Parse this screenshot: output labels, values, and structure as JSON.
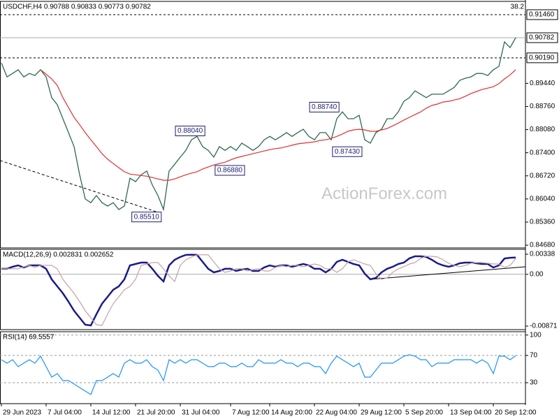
{
  "chart_data": [
    {
      "type": "line",
      "title": "USDCHF,H4 0.90788 0.90833 0.90773 0.90782",
      "watermark": "ActionForex.com",
      "fib_level": 38.2,
      "x": [
        0,
        1,
        2,
        3,
        4,
        5,
        6,
        7,
        8,
        9,
        10,
        11,
        12,
        13,
        14,
        15,
        16,
        17,
        18,
        19,
        20,
        21,
        22,
        23,
        24,
        25,
        26,
        27,
        28,
        29,
        30,
        31,
        32,
        33,
        34,
        35,
        36,
        37,
        38,
        39,
        40,
        41,
        42,
        43,
        44,
        45,
        46,
        47,
        48,
        49,
        50,
        51,
        52,
        53,
        54,
        55,
        56,
        57,
        58,
        59,
        60,
        61,
        62,
        63,
        64,
        65,
        66,
        67,
        68,
        69,
        70,
        71,
        72,
        73,
        74,
        75,
        76,
        77,
        78,
        79,
        80,
        81,
        82,
        83,
        84,
        85,
        86,
        87,
        88,
        89,
        90,
        91,
        92
      ],
      "xlim": [
        -0.25,
        93.75
      ],
      "ylim": [
        0.846,
        0.9185
      ],
      "yticks": [
        {
          "value": 0.8468,
          "label": "0.84680"
        },
        {
          "value": 0.8536,
          "label": "0.85360"
        },
        {
          "value": 0.8604,
          "label": "0.86040"
        },
        {
          "value": 0.8672,
          "label": "0.86720"
        },
        {
          "value": 0.874,
          "label": "0.87400"
        },
        {
          "value": 0.8808,
          "label": "0.88080"
        },
        {
          "value": 0.8876,
          "label": "0.88760"
        },
        {
          "value": 0.8944,
          "label": "0.89440"
        }
      ],
      "series": [
        {
          "color": "#2d6a4f",
          "values": [
            0.9004,
            0.8963,
            0.8973,
            0.8984,
            0.8963,
            0.8973,
            0.8967,
            0.8984,
            0.8963,
            0.8902,
            0.8881,
            0.884,
            0.8799,
            0.8758,
            0.8675,
            0.8604,
            0.8593,
            0.8614,
            0.8593,
            0.8583,
            0.8593,
            0.8573,
            0.8583,
            0.8665,
            0.8655,
            0.8675,
            0.8686,
            0.8645,
            0.8614,
            0.8573,
            0.8686,
            0.8706,
            0.8727,
            0.8747,
            0.8778,
            0.8788,
            0.8758,
            0.8747,
            0.8727,
            0.8758,
            0.8747,
            0.8758,
            0.8747,
            0.8768,
            0.8758,
            0.8747,
            0.8758,
            0.8778,
            0.8788,
            0.8778,
            0.8788,
            0.8799,
            0.8788,
            0.8799,
            0.8809,
            0.8788,
            0.8778,
            0.8799,
            0.8799,
            0.8778,
            0.884,
            0.886,
            0.884,
            0.884,
            0.885,
            0.8778,
            0.8768,
            0.8799,
            0.8809,
            0.884,
            0.884,
            0.886,
            0.8891,
            0.8902,
            0.8922,
            0.8912,
            0.8902,
            0.8912,
            0.8912,
            0.8912,
            0.8922,
            0.8932,
            0.8953,
            0.8959,
            0.8963,
            0.8973,
            0.8973,
            0.8967,
            0.8984,
            0.8994,
            0.9066,
            0.9049,
            0.90782
          ]
        },
        {
          "color": "#e03030",
          "values": [
            null,
            null,
            null,
            null,
            null,
            null,
            null,
            0.8984,
            0.8971,
            0.8957,
            0.8938,
            0.8902,
            0.8873,
            0.8844,
            0.8822,
            0.8799,
            0.8778,
            0.8758,
            0.8737,
            0.8721,
            0.8708,
            0.8696,
            0.8684,
            0.8677,
            0.8675,
            0.8673,
            0.8671,
            0.8667,
            0.8663,
            0.8659,
            0.8659,
            0.8663,
            0.8669,
            0.8675,
            0.868,
            0.8684,
            0.8692,
            0.8698,
            0.8704,
            0.8708,
            0.8712,
            0.8719,
            0.8725,
            0.8729,
            0.8733,
            0.8737,
            0.8741,
            0.8745,
            0.8749,
            0.8752,
            0.8754,
            0.8758,
            0.8762,
            0.8766,
            0.8768,
            0.877,
            0.8772,
            0.8776,
            0.8778,
            0.8782,
            0.8788,
            0.8795,
            0.8803,
            0.8807,
            0.8809,
            0.8807,
            0.8803,
            0.8803,
            0.8807,
            0.8811,
            0.8819,
            0.8827,
            0.8836,
            0.8844,
            0.8852,
            0.886,
            0.8871,
            0.8879,
            0.8883,
            0.8889,
            0.8891,
            0.8895,
            0.8899,
            0.8906,
            0.8914,
            0.892,
            0.8926,
            0.893,
            0.8934,
            0.8943,
            0.8957,
            0.8969,
            0.8984
          ]
        }
      ],
      "levels": [
        {
          "value": 0.9146,
          "label": "0.91460",
          "style": "dashed"
        },
        {
          "value": 0.9019,
          "label": "0.90190",
          "style": "dashed"
        },
        {
          "value": 0.90782,
          "label": "0.90782",
          "style": "solid"
        }
      ],
      "trendlines": [
        {
          "x": [
            -0.25,
            28.5
          ],
          "values": [
            0.8717,
            0.8562
          ],
          "style": "dashed"
        }
      ],
      "annotations": [
        {
          "x": 36.4,
          "value": 0.8804,
          "label": "0.88040"
        },
        {
          "x": 43.5,
          "value": 0.8688,
          "label": "0.86880"
        },
        {
          "x": 28.6,
          "value": 0.8551,
          "label": "0.85510"
        },
        {
          "x": 60.4,
          "value": 0.8874,
          "label": "0.88740"
        },
        {
          "x": 64.5,
          "value": 0.8743,
          "label": "0.87430"
        }
      ]
    },
    {
      "type": "line",
      "title": "MACD(12,26,9) 0.002831 0.002652",
      "ylim": [
        -0.0093,
        0.0042
      ],
      "zero_line": true,
      "yticks": [
        {
          "value": 0.00338,
          "label": "0.00338"
        },
        {
          "value": 0,
          "label": "0.00"
        },
        {
          "value": -0.00871,
          "label": "-0.00871"
        }
      ],
      "series": [
        {
          "color": "#1a1a8c",
          "values": [
            0.00092,
            0.00092,
            0.00127,
            0.0015,
            0.00115,
            0.0015,
            0.0015,
            0.0015,
            0.00092,
            -0.00085,
            -0.00202,
            -0.00319,
            -0.0046,
            -0.00613,
            -0.0073,
            -0.00848,
            -0.00859,
            -0.00671,
            -0.00495,
            -0.00378,
            -0.00261,
            -0.00202,
            -0.00085,
            0.0015,
            0.00174,
            0.00197,
            0.00197,
            0.00092,
            -0.00026,
            -0.0012,
            0.0015,
            0.00244,
            0.00291,
            0.00326,
            0.0033,
            0.00326,
            0.00209,
            0.00092,
            0.00033,
            0.00056,
            0.00092,
            0.00092,
            0.00056,
            0.0008,
            0.00092,
            0.00056,
            0.00056,
            0.00115,
            0.0015,
            0.00127,
            0.0015,
            0.0015,
            0.00127,
            0.0015,
            0.00174,
            0.0015,
            0.00092,
            0.00092,
            0.00033,
            0.00092,
            0.00209,
            0.00244,
            0.00209,
            0.00174,
            0.0015,
            9e-05,
            -0.00085,
            -0.00061,
            0.00033,
            0.00092,
            0.00127,
            0.00174,
            0.00197,
            0.00268,
            0.00303,
            0.00303,
            0.00291,
            0.00244,
            0.00185,
            0.0015,
            0.00127,
            0.0015,
            0.00185,
            0.00197,
            0.00197,
            0.00185,
            0.00174,
            0.00174,
            0.00115,
            0.0015,
            0.00265,
            0.00278,
            0.002831
          ]
        },
        {
          "color": "#c9a0a0",
          "values": [
            0.00092,
            0.00092,
            0.00092,
            0.00092,
            0.00127,
            0.0015,
            0.00115,
            0.0015,
            0.0015,
            0.0015,
            0.00092,
            -0.00085,
            -0.00202,
            -0.00319,
            -0.0046,
            -0.00613,
            -0.0073,
            -0.00848,
            -0.00859,
            -0.00671,
            -0.00495,
            -0.00378,
            -0.00261,
            -0.00202,
            -0.00085,
            0.0015,
            0.00174,
            0.00197,
            0.00197,
            0.00092,
            -0.00026,
            -0.0012,
            0.0015,
            0.00244,
            0.00291,
            0.00326,
            0.0033,
            0.00326,
            0.00209,
            0.00092,
            0.00033,
            0.00056,
            0.00092,
            0.00092,
            0.00056,
            0.0008,
            0.00092,
            0.00056,
            0.00056,
            0.00115,
            0.0015,
            0.00127,
            0.0015,
            0.0015,
            0.00127,
            0.0015,
            0.00174,
            0.0015,
            0.00092,
            0.00092,
            0.00033,
            0.00092,
            0.00209,
            0.00244,
            0.00209,
            0.00174,
            0.0015,
            9e-05,
            -0.00085,
            -0.00061,
            0.00033,
            0.00092,
            0.00127,
            0.00174,
            0.00197,
            0.00268,
            0.00303,
            0.00303,
            0.00291,
            0.00244,
            0.00185,
            0.0015,
            0.00127,
            0.0015,
            0.00185,
            0.00197,
            0.00197,
            0.00185,
            0.00174,
            0.00174,
            0.00115,
            0.0015,
            0.002652
          ]
        }
      ],
      "trendlines": [
        {
          "x": [
            66,
            93.75
          ],
          "values": [
            -0.00085,
            0.00127
          ],
          "style": "solid"
        }
      ]
    },
    {
      "type": "line",
      "title": "RSI(14) 69.5557",
      "ylim": [
        -0.8,
        104.9
      ],
      "grid": true,
      "yticks": [
        100,
        70,
        30
      ],
      "xticks": [
        {
          "value": 0,
          "label": "29 Jun 2023"
        },
        {
          "value": 8,
          "label": "7 Jul 04:00"
        },
        {
          "value": 16,
          "label": "14 Jul 12:00"
        },
        {
          "value": 24,
          "label": "21 Jul 20:00"
        },
        {
          "value": 32,
          "label": "31 Jul 04:00"
        },
        {
          "value": 41,
          "label": "7 Aug 12:00"
        },
        {
          "value": 48,
          "label": "14 Aug 20:00"
        },
        {
          "value": 56,
          "label": "22 Aug 04:00"
        },
        {
          "value": 64,
          "label": "29 Aug 12:00"
        },
        {
          "value": 72,
          "label": "5 Sep 20:00"
        },
        {
          "value": 80,
          "label": "13 Sep 04:00"
        },
        {
          "value": 88,
          "label": "20 Sep 12:00"
        }
      ],
      "series": [
        {
          "color": "#1e90ff",
          "values": [
            63.8,
            58.7,
            63.8,
            53.6,
            58.7,
            63.8,
            58.7,
            69.0,
            53.6,
            38.2,
            43.3,
            33.1,
            33.1,
            28.0,
            22.8,
            17.7,
            12.6,
            33.1,
            33.1,
            38.2,
            43.3,
            38.2,
            58.7,
            63.8,
            58.7,
            58.7,
            63.8,
            53.6,
            48.5,
            33.1,
            63.8,
            58.7,
            63.8,
            58.7,
            63.8,
            63.8,
            58.7,
            53.6,
            53.6,
            58.7,
            58.7,
            53.6,
            53.6,
            58.7,
            53.6,
            53.6,
            63.8,
            58.7,
            58.7,
            58.7,
            63.8,
            58.7,
            58.7,
            53.6,
            58.7,
            58.7,
            53.6,
            53.6,
            43.3,
            58.7,
            69.0,
            63.8,
            58.7,
            53.6,
            58.7,
            38.2,
            38.2,
            48.5,
            58.7,
            58.7,
            58.7,
            63.8,
            69.0,
            71.0,
            69.0,
            63.8,
            63.8,
            53.6,
            58.7,
            58.7,
            58.7,
            63.8,
            63.8,
            63.8,
            63.8,
            58.7,
            63.8,
            58.7,
            43.3,
            69.0,
            69.0,
            63.8,
            69.5557
          ]
        }
      ]
    }
  ]
}
